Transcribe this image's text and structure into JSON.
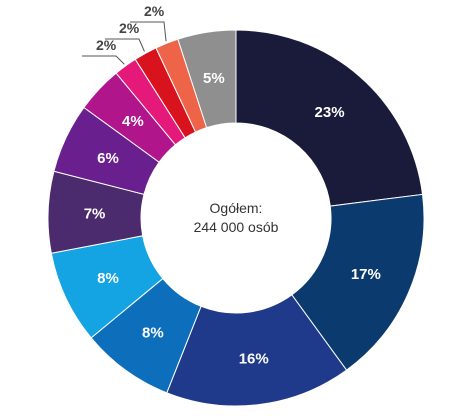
{
  "chart_data": {
    "type": "pie",
    "center_text": [
      "Ogółem:",
      "244 000 osób"
    ],
    "slices": [
      {
        "label": "23%",
        "value": 23,
        "color": "#1a1a3a",
        "label_position": "inside"
      },
      {
        "label": "17%",
        "value": 17,
        "color": "#0b3b6e",
        "label_position": "inside"
      },
      {
        "label": "16%",
        "value": 16,
        "color": "#1f3a8a",
        "label_position": "inside"
      },
      {
        "label": "8%",
        "value": 8,
        "color": "#0d6fbb",
        "label_position": "inside"
      },
      {
        "label": "8%",
        "value": 8,
        "color": "#14a3e3",
        "label_position": "inside"
      },
      {
        "label": "7%",
        "value": 7,
        "color": "#4b2a6e",
        "label_position": "inside"
      },
      {
        "label": "6%",
        "value": 6,
        "color": "#6a1f8e",
        "label_position": "inside"
      },
      {
        "label": "4%",
        "value": 4,
        "color": "#b0158c",
        "label_position": "inside"
      },
      {
        "label": "2%",
        "value": 2,
        "color": "#e5197a",
        "label_position": "outside"
      },
      {
        "label": "2%",
        "value": 2,
        "color": "#d9131e",
        "label_position": "outside"
      },
      {
        "label": "2%",
        "value": 2,
        "color": "#ee6448",
        "label_position": "outside"
      },
      {
        "label": "5%",
        "value": 5,
        "color": "#8f8f8f",
        "label_position": "inside"
      }
    ]
  }
}
